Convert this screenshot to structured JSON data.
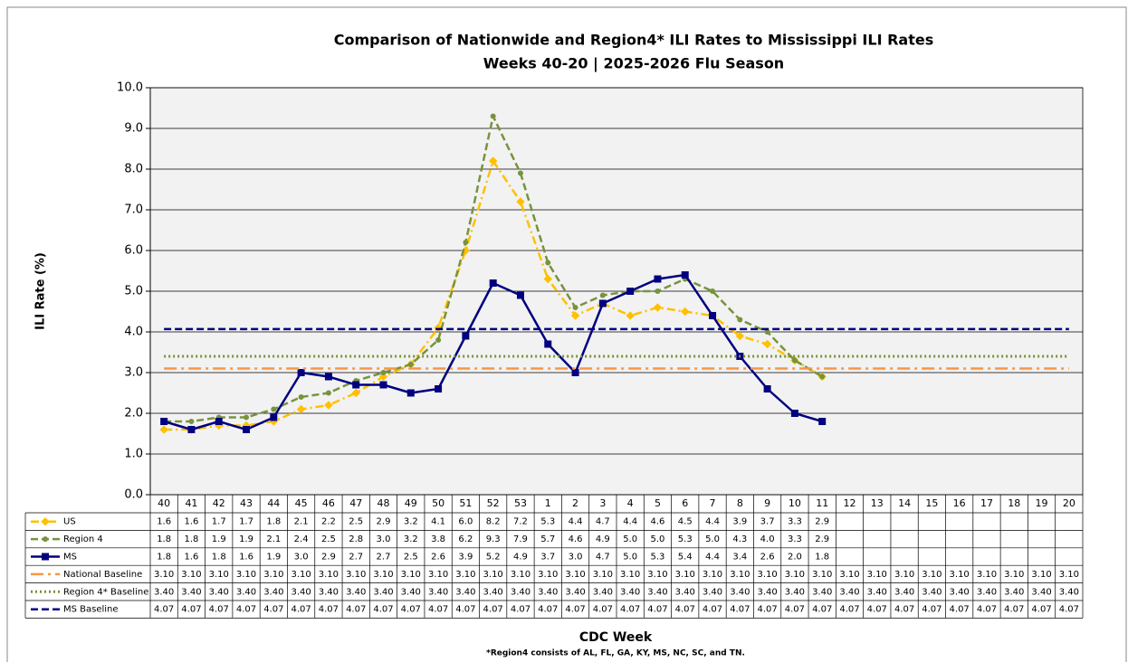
{
  "chart_data": {
    "type": "line",
    "title": "Comparison of Nationwide and Region4* ILI Rates to Mississippi ILI Rates",
    "subtitle": "Weeks 40-20 | 2025-2026 Flu Season",
    "y_label": "ILI Rate (%)",
    "x_label": "CDC Week",
    "footnote": "*Region4 consists of AL, FL, GA, KY, MS, NC, SC, and TN.",
    "categories": [
      "40",
      "41",
      "42",
      "43",
      "44",
      "45",
      "46",
      "47",
      "48",
      "49",
      "50",
      "51",
      "52",
      "53",
      "1",
      "2",
      "3",
      "4",
      "5",
      "6",
      "7",
      "8",
      "9",
      "10",
      "11",
      "12",
      "13",
      "14",
      "15",
      "16",
      "17",
      "18",
      "19",
      "20"
    ],
    "ylim": [
      0,
      10
    ],
    "yticks": [
      {
        "value": 0,
        "label": "0.0"
      },
      {
        "value": 1,
        "label": "1.0"
      },
      {
        "value": 2,
        "label": "2.0"
      },
      {
        "value": 3,
        "label": "3.0"
      },
      {
        "value": 4,
        "label": "4.0"
      },
      {
        "value": 5,
        "label": "5.0"
      },
      {
        "value": 6,
        "label": "6.0"
      },
      {
        "value": 7,
        "label": "7.0"
      },
      {
        "value": 8,
        "label": "8.0"
      },
      {
        "value": 9,
        "label": "9.0"
      },
      {
        "value": 10,
        "label": "10.0"
      }
    ],
    "grid": true,
    "series": [
      {
        "name": "US",
        "color": "#FFC000",
        "style": "dash-dot",
        "marker": "diamond",
        "values": [
          1.6,
          1.6,
          1.7,
          1.7,
          1.8,
          2.1,
          2.2,
          2.5,
          2.9,
          3.2,
          4.1,
          6.0,
          8.2,
          7.2,
          5.3,
          4.4,
          4.7,
          4.4,
          4.6,
          4.5,
          4.4,
          3.9,
          3.7,
          3.3,
          2.9,
          null,
          null,
          null,
          null,
          null,
          null,
          null,
          null,
          null
        ],
        "value_labels": [
          "1.6",
          "1.6",
          "1.7",
          "1.7",
          "1.8",
          "2.1",
          "2.2",
          "2.5",
          "2.9",
          "3.2",
          "4.1",
          "6.0",
          "8.2",
          "7.2",
          "5.3",
          "4.4",
          "4.7",
          "4.4",
          "4.6",
          "4.5",
          "4.4",
          "3.9",
          "3.7",
          "3.3",
          "2.9",
          null,
          null,
          null,
          null,
          null,
          null,
          null,
          null,
          null
        ]
      },
      {
        "name": "Region 4",
        "color": "#77933C",
        "style": "dash",
        "marker": "circle",
        "values": [
          1.8,
          1.8,
          1.9,
          1.9,
          2.1,
          2.4,
          2.5,
          2.8,
          3.0,
          3.2,
          3.8,
          6.2,
          9.3,
          7.9,
          5.7,
          4.6,
          4.9,
          5.0,
          5.0,
          5.3,
          5.0,
          4.3,
          4.0,
          3.3,
          2.9,
          null,
          null,
          null,
          null,
          null,
          null,
          null,
          null,
          null
        ],
        "value_labels": [
          "1.8",
          "1.8",
          "1.9",
          "1.9",
          "2.1",
          "2.4",
          "2.5",
          "2.8",
          "3.0",
          "3.2",
          "3.8",
          "6.2",
          "9.3",
          "7.9",
          "5.7",
          "4.6",
          "4.9",
          "5.0",
          "5.0",
          "5.3",
          "5.0",
          "4.3",
          "4.0",
          "3.3",
          "2.9",
          null,
          null,
          null,
          null,
          null,
          null,
          null,
          null,
          null
        ]
      },
      {
        "name": "MS",
        "color": "#000080",
        "style": "solid",
        "marker": "square",
        "values": [
          1.8,
          1.6,
          1.8,
          1.6,
          1.9,
          3.0,
          2.9,
          2.7,
          2.7,
          2.5,
          2.6,
          3.9,
          5.2,
          4.9,
          3.7,
          3.0,
          4.7,
          5.0,
          5.3,
          5.4,
          4.4,
          3.4,
          2.6,
          2.0,
          1.8,
          null,
          null,
          null,
          null,
          null,
          null,
          null,
          null,
          null
        ],
        "value_labels": [
          "1.8",
          "1.6",
          "1.8",
          "1.6",
          "1.9",
          "3.0",
          "2.9",
          "2.7",
          "2.7",
          "2.5",
          "2.6",
          "3.9",
          "5.2",
          "4.9",
          "3.7",
          "3.0",
          "4.7",
          "5.0",
          "5.3",
          "5.4",
          "4.4",
          "3.4",
          "2.6",
          "2.0",
          "1.8",
          null,
          null,
          null,
          null,
          null,
          null,
          null,
          null,
          null
        ]
      },
      {
        "name": "National Baseline",
        "color": "#F79646",
        "style": "long-dash-dot",
        "marker": "none",
        "values": [
          3.1,
          3.1,
          3.1,
          3.1,
          3.1,
          3.1,
          3.1,
          3.1,
          3.1,
          3.1,
          3.1,
          3.1,
          3.1,
          3.1,
          3.1,
          3.1,
          3.1,
          3.1,
          3.1,
          3.1,
          3.1,
          3.1,
          3.1,
          3.1,
          3.1,
          3.1,
          3.1,
          3.1,
          3.1,
          3.1,
          3.1,
          3.1,
          3.1,
          3.1
        ],
        "value_labels": [
          "3.10",
          "3.10",
          "3.10",
          "3.10",
          "3.10",
          "3.10",
          "3.10",
          "3.10",
          "3.10",
          "3.10",
          "3.10",
          "3.10",
          "3.10",
          "3.10",
          "3.10",
          "3.10",
          "3.10",
          "3.10",
          "3.10",
          "3.10",
          "3.10",
          "3.10",
          "3.10",
          "3.10",
          "3.10",
          "3.10",
          "3.10",
          "3.10",
          "3.10",
          "3.10",
          "3.10",
          "3.10",
          "3.10",
          "3.10"
        ]
      },
      {
        "name": "Region 4* Baseline",
        "color": "#77933C",
        "style": "dot",
        "marker": "none",
        "values": [
          3.4,
          3.4,
          3.4,
          3.4,
          3.4,
          3.4,
          3.4,
          3.4,
          3.4,
          3.4,
          3.4,
          3.4,
          3.4,
          3.4,
          3.4,
          3.4,
          3.4,
          3.4,
          3.4,
          3.4,
          3.4,
          3.4,
          3.4,
          3.4,
          3.4,
          3.4,
          3.4,
          3.4,
          3.4,
          3.4,
          3.4,
          3.4,
          3.4,
          3.4
        ],
        "value_labels": [
          "3.40",
          "3.40",
          "3.40",
          "3.40",
          "3.40",
          "3.40",
          "3.40",
          "3.40",
          "3.40",
          "3.40",
          "3.40",
          "3.40",
          "3.40",
          "3.40",
          "3.40",
          "3.40",
          "3.40",
          "3.40",
          "3.40",
          "3.40",
          "3.40",
          "3.40",
          "3.40",
          "3.40",
          "3.40",
          "3.40",
          "3.40",
          "3.40",
          "3.40",
          "3.40",
          "3.40",
          "3.40",
          "3.40",
          "3.40"
        ]
      },
      {
        "name": "MS Baseline",
        "color": "#000080",
        "style": "dash",
        "marker": "none",
        "values": [
          4.07,
          4.07,
          4.07,
          4.07,
          4.07,
          4.07,
          4.07,
          4.07,
          4.07,
          4.07,
          4.07,
          4.07,
          4.07,
          4.07,
          4.07,
          4.07,
          4.07,
          4.07,
          4.07,
          4.07,
          4.07,
          4.07,
          4.07,
          4.07,
          4.07,
          4.07,
          4.07,
          4.07,
          4.07,
          4.07,
          4.07,
          4.07,
          4.07,
          4.07
        ],
        "value_labels": [
          "4.07",
          "4.07",
          "4.07",
          "4.07",
          "4.07",
          "4.07",
          "4.07",
          "4.07",
          "4.07",
          "4.07",
          "4.07",
          "4.07",
          "4.07",
          "4.07",
          "4.07",
          "4.07",
          "4.07",
          "4.07",
          "4.07",
          "4.07",
          "4.07",
          "4.07",
          "4.07",
          "4.07",
          "4.07",
          "4.07",
          "4.07",
          "4.07",
          "4.07",
          "4.07",
          "4.07",
          "4.07",
          "4.07",
          "4.07"
        ]
      }
    ]
  }
}
